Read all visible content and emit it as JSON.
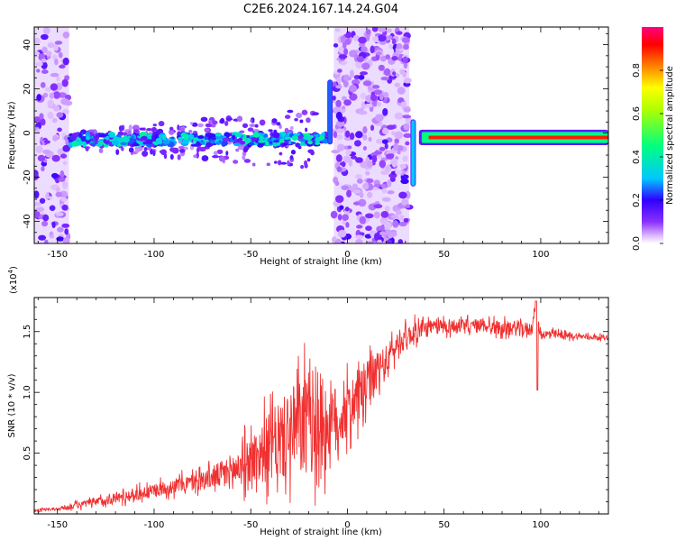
{
  "figure_title": "C2E6.2024.167.14.24.G04",
  "chart_data": [
    {
      "type": "heatmap",
      "title": "C2E6.2024.167.14.24.G04",
      "xlabel": "Height of straight line (km)",
      "ylabel": "Frequency (Hz)",
      "xlim": [
        -162,
        135
      ],
      "ylim": [
        -50,
        48
      ],
      "xticks": [
        -150,
        -100,
        -50,
        0,
        50,
        100
      ],
      "yticks": [
        -40,
        -20,
        0,
        20,
        40
      ],
      "colorbar": {
        "label": "Normalized spectral amplitude",
        "range": [
          0.0,
          1.0
        ],
        "ticks": [
          0.0,
          0.2,
          0.4,
          0.6,
          0.8
        ],
        "tick_labels": [
          "0.0",
          "0.2",
          "0.4",
          "0.6",
          "0.8"
        ],
        "colormap": [
          "#ffffff",
          "#c080ff",
          "#6a00ff",
          "#0000ff",
          "#00c8ff",
          "#00ff60",
          "#ffff00",
          "#ff8000",
          "#ff0000",
          "#ff0080"
        ]
      },
      "ridge": [
        {
          "x_range": [
            -162,
            -10
          ],
          "frequency_hz": -3,
          "amplitude": 0.25
        },
        {
          "x_range": [
            -50,
            -20
          ],
          "frequency_hz": -2,
          "amplitude": 0.35
        },
        {
          "x_range": [
            38,
            135
          ],
          "frequency_hz": -2,
          "amplitude": 0.9
        }
      ],
      "noisy_regions_km": [
        [
          -162,
          -144
        ],
        [
          -7,
          32
        ]
      ],
      "grid": false
    },
    {
      "type": "line",
      "xlabel": "Height of straight line (km)",
      "ylabel": "SNR (10 * v/v)",
      "y_multiplier_label": "(x10",
      "y_multiplier_exp": "4",
      "y_multiplier_close": ")",
      "xlim": [
        -162,
        135
      ],
      "ylim": [
        0,
        17800
      ],
      "xticks": [
        -150,
        -100,
        -50,
        0,
        50,
        100
      ],
      "yticks": [
        5000,
        10000,
        15000
      ],
      "ytick_labels": [
        "0.5",
        "1.0",
        "1.5"
      ],
      "color": "#f03030",
      "series": [
        {
          "x": [
            -162,
            -150,
            -140,
            -130,
            -120,
            -110,
            -100,
            -90,
            -80,
            -70,
            -60,
            -50,
            -40,
            -30,
            -25,
            -20,
            -15,
            -10,
            -5,
            0,
            5,
            10,
            15,
            20,
            25,
            30,
            35,
            40,
            50,
            60,
            70,
            80,
            90,
            95,
            97,
            100,
            110,
            120,
            135
          ],
          "values": [
            300,
            400,
            700,
            1000,
            1300,
            1600,
            1900,
            2300,
            2600,
            3000,
            3500,
            4500,
            5500,
            6500,
            7000,
            7500,
            7600,
            7200,
            7700,
            8500,
            9500,
            10500,
            11500,
            12500,
            13800,
            14500,
            15000,
            15200,
            15500,
            15400,
            15500,
            15300,
            15200,
            15200,
            16800,
            14800,
            14700,
            14600,
            14500
          ],
          "noise": [
            100,
            150,
            300,
            400,
            500,
            600,
            600,
            700,
            800,
            1000,
            1600,
            2200,
            3200,
            4000,
            4500,
            4800,
            4800,
            4500,
            3000,
            2500,
            2600,
            2300,
            2000,
            1500,
            1200,
            1000,
            900,
            800,
            700,
            650,
            650,
            650,
            650,
            650,
            300,
            450,
            350,
            250,
            200
          ]
        }
      ],
      "grid": false
    }
  ]
}
